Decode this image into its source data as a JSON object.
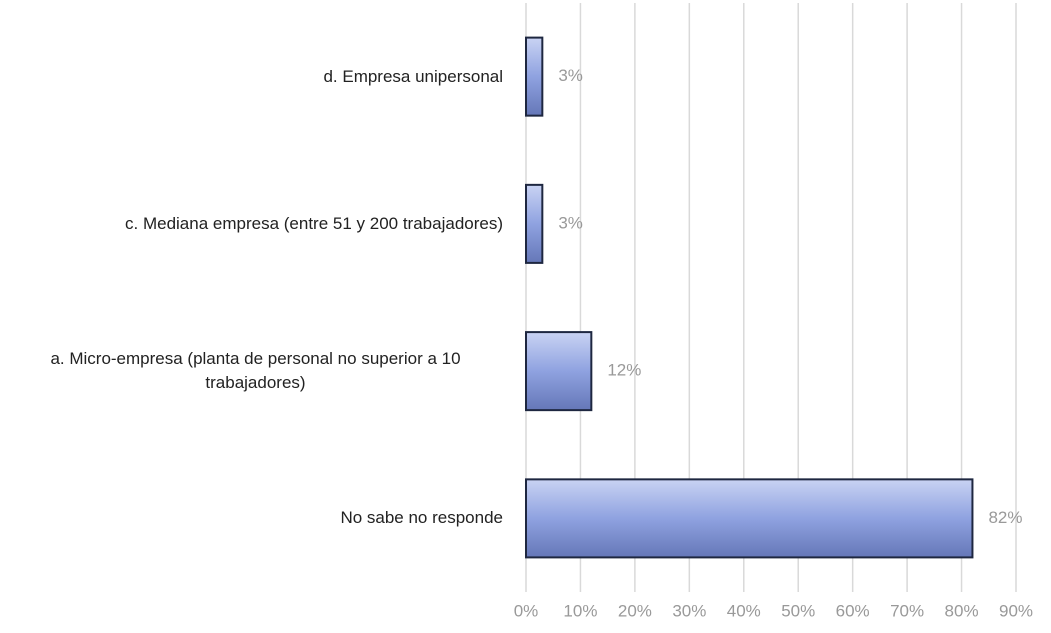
{
  "chart_data": {
    "type": "bar",
    "orientation": "horizontal",
    "categories": [
      "d. Empresa unipersonal",
      "c. Mediana empresa (entre 51 y 200 trabajadores)",
      "a. Micro-empresa (planta de personal no superior a 10 trabajadores)",
      "No sabe no responde"
    ],
    "values": [
      3,
      3,
      12,
      82
    ],
    "value_labels": [
      "3%",
      "3%",
      "12%",
      "82%"
    ],
    "color": "#8fa2e0",
    "xlim": [
      0,
      90
    ],
    "xticks": [
      {
        "value": 0,
        "label": "0%"
      },
      {
        "value": 10,
        "label": "10%"
      },
      {
        "value": 20,
        "label": "20%"
      },
      {
        "value": 30,
        "label": "30%"
      },
      {
        "value": 40,
        "label": "40%"
      },
      {
        "value": 50,
        "label": "50%"
      },
      {
        "value": 60,
        "label": "60%"
      },
      {
        "value": 70,
        "label": "70%"
      },
      {
        "value": 80,
        "label": "80%"
      },
      {
        "value": 90,
        "label": "90%"
      }
    ],
    "grid": true
  }
}
